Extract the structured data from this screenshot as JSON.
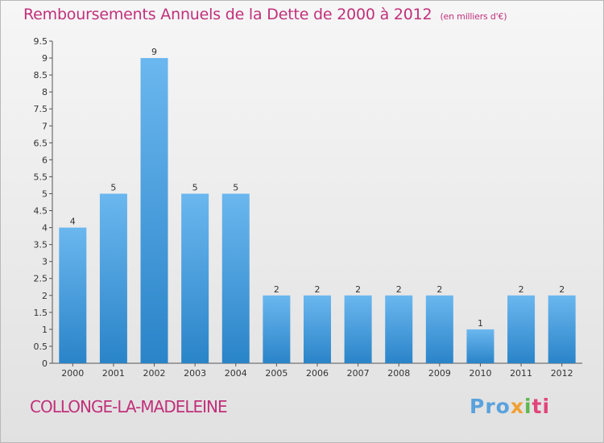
{
  "chart_data": {
    "type": "bar",
    "title": "Remboursements Annuels de la Dette de 2000 à 2012",
    "unit_note": "(en milliers d'€)",
    "xlabel": "",
    "ylabel": "",
    "categories": [
      "2000",
      "2001",
      "2002",
      "2003",
      "2004",
      "2005",
      "2006",
      "2007",
      "2008",
      "2009",
      "2010",
      "2011",
      "2012"
    ],
    "values": [
      4,
      5,
      9,
      5,
      5,
      2,
      2,
      2,
      2,
      2,
      1,
      2,
      2
    ],
    "data_labels": [
      "4",
      "5",
      "9",
      "5",
      "5",
      "2",
      "2",
      "2",
      "2",
      "2",
      "1",
      "2",
      "2"
    ],
    "ylim": [
      0,
      9.5
    ],
    "yticks": [
      "0",
      "0.5",
      "1",
      "1.5",
      "2",
      "2.5",
      "3",
      "3.5",
      "4",
      "4.5",
      "5",
      "5.5",
      "6",
      "6.5",
      "7",
      "7.5",
      "8",
      "8.5",
      "9",
      "9.5"
    ],
    "grid": false,
    "colors": {
      "bar_light": "#6bb7ef",
      "bar_dark": "#2a84c8",
      "title": "#c1307a"
    }
  },
  "location": "COLLONGE-LA-MADELEINE",
  "logo": {
    "p1": "Pro",
    "p2": "x",
    "p3": "i",
    "p4": "ti"
  }
}
